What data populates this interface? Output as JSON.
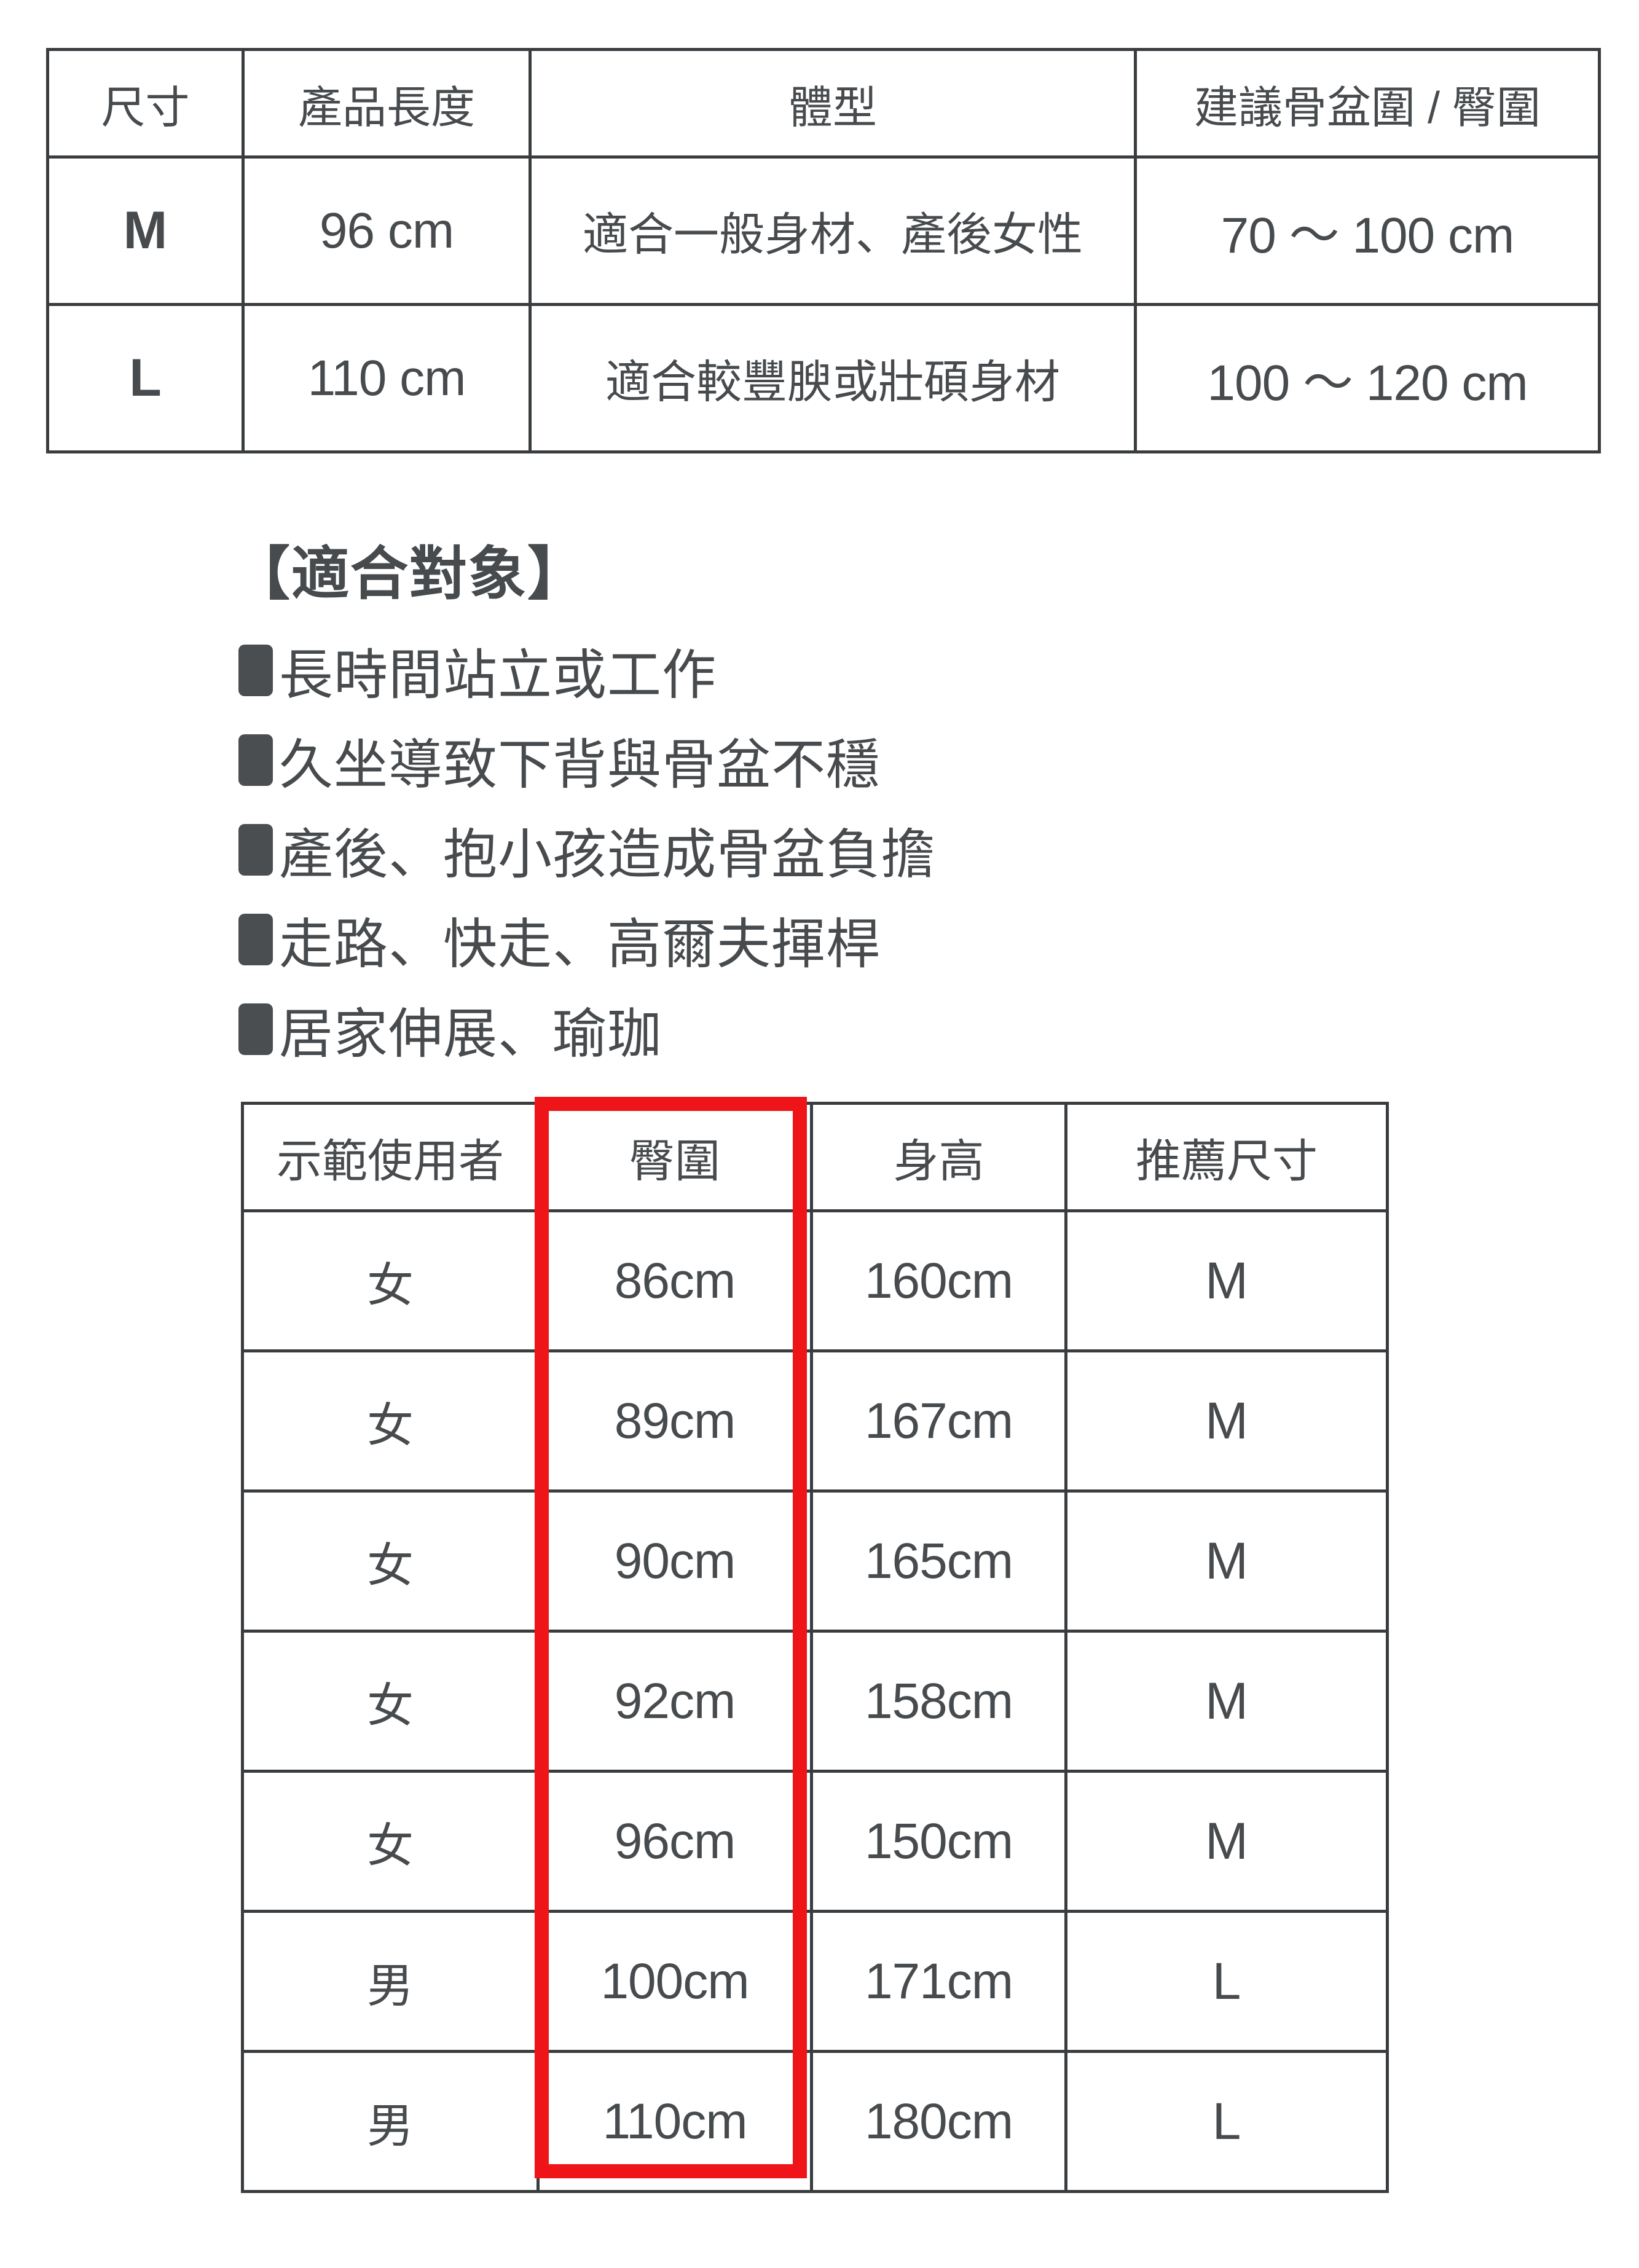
{
  "page": {
    "colors": {
      "text": "#474b4e",
      "table_border": "#3a3d40",
      "highlight_red": "#ee1417",
      "background": "#ffffff"
    }
  },
  "size_table": {
    "headers": [
      "尺寸",
      "產品長度",
      "體型",
      "建議骨盆圍 / 臀圍"
    ],
    "rows": [
      {
        "size": "M",
        "length": "96 cm",
        "body_type": "適合一般身材、產後女性",
        "range": "70 ～ 100 cm"
      },
      {
        "size": "L",
        "length": "110 cm",
        "body_type": "適合較豐腴或壯碩身材",
        "range": "100 ～ 120 cm"
      }
    ]
  },
  "suitable_section": {
    "heading": "【適合對象】",
    "items": [
      "長時間站立或工作",
      "久坐導致下背與骨盆不穩",
      "產後、抱小孩造成骨盆負擔",
      "走路、快走、高爾夫揮桿",
      "居家伸展、瑜珈"
    ]
  },
  "user_table": {
    "headers": [
      "示範使用者",
      "臀圍",
      "身高",
      "推薦尺寸"
    ],
    "highlighted_column": "臀圍",
    "rows": [
      {
        "user": "女",
        "hip": "86cm",
        "height": "160cm",
        "size": "M"
      },
      {
        "user": "女",
        "hip": "89cm",
        "height": "167cm",
        "size": "M"
      },
      {
        "user": "女",
        "hip": "90cm",
        "height": "165cm",
        "size": "M"
      },
      {
        "user": "女",
        "hip": "92cm",
        "height": "158cm",
        "size": "M"
      },
      {
        "user": "女",
        "hip": "96cm",
        "height": "150cm",
        "size": "M"
      },
      {
        "user": "男",
        "hip": "100cm",
        "height": "171cm",
        "size": "L"
      },
      {
        "user": "男",
        "hip": "110cm",
        "height": "180cm",
        "size": "L"
      }
    ]
  }
}
